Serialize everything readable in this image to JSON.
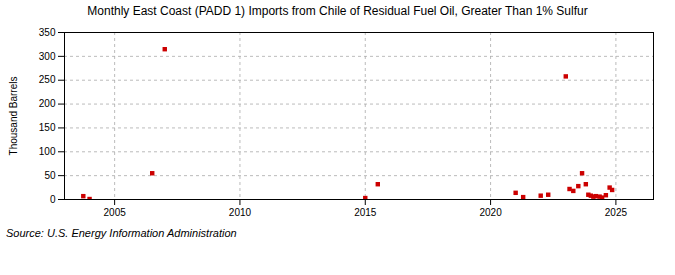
{
  "chart_data": {
    "type": "scatter",
    "title": "Monthly East Coast (PADD 1) Imports from Chile of Residual Fuel Oil, Greater Than 1% Sulfur",
    "ylabel": "Thousand Barrels",
    "annotations": [
      "Source: U.S. Energy Information Administration"
    ],
    "x": [
      2003.75,
      2004.0,
      2006.5,
      2007.0,
      2015.0,
      2015.5,
      2021.0,
      2021.3,
      2022.0,
      2022.3,
      2023.0,
      2023.15,
      2023.3,
      2023.5,
      2023.65,
      2023.8,
      2023.9,
      2024.0,
      2024.1,
      2024.2,
      2024.35,
      2024.45,
      2024.6,
      2024.75,
      2024.85
    ],
    "values": [
      7,
      1,
      55,
      315,
      3,
      32,
      14,
      5,
      8,
      10,
      258,
      22,
      18,
      28,
      55,
      32,
      10,
      8,
      6,
      7,
      6,
      4,
      9,
      25,
      20
    ],
    "color": "#cc0000",
    "marker": "square",
    "xlim": [
      2003.0,
      2026.5
    ],
    "ylim": [
      0,
      350
    ],
    "xticks": [
      2005,
      2010,
      2015,
      2020,
      2025
    ],
    "yticks": [
      0,
      50,
      100,
      150,
      200,
      250,
      300,
      350
    ],
    "grid": true
  }
}
